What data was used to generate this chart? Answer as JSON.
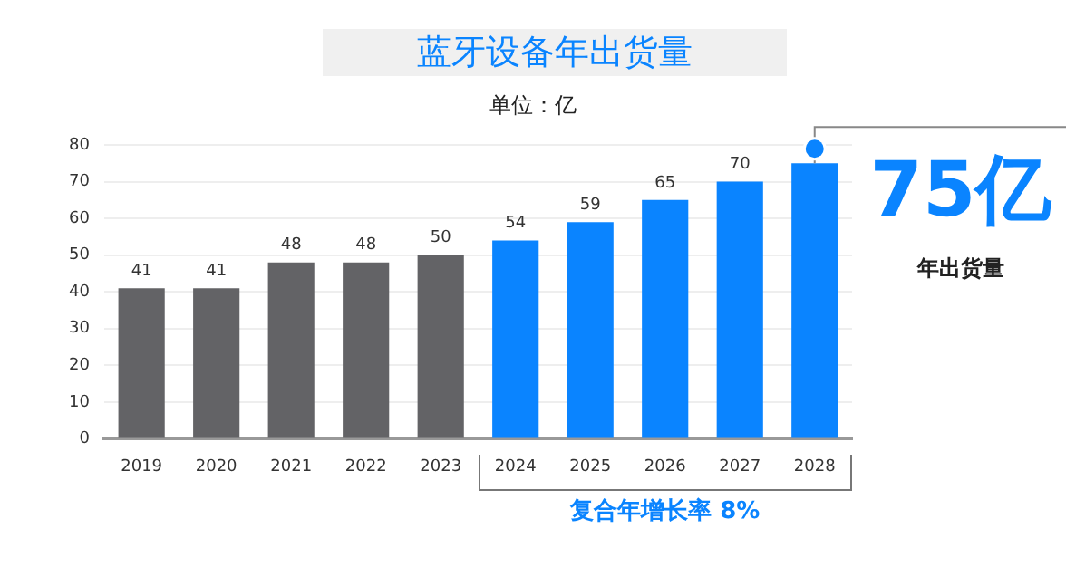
{
  "chart_data": {
    "type": "bar",
    "title": "蓝牙设备年出货量",
    "subtitle": "单位：亿",
    "categories": [
      "2019",
      "2020",
      "2021",
      "2022",
      "2023",
      "2024",
      "2025",
      "2026",
      "2027",
      "2028"
    ],
    "values": [
      41,
      41,
      48,
      48,
      50,
      54,
      59,
      65,
      70,
      75
    ],
    "colors": [
      "#636366",
      "#636366",
      "#636366",
      "#636366",
      "#636366",
      "#0a84ff",
      "#0a84ff",
      "#0a84ff",
      "#0a84ff",
      "#0a84ff"
    ],
    "value_labels": [
      "41",
      "41",
      "48",
      "48",
      "50",
      "54",
      "59",
      "65",
      "70",
      null
    ],
    "ylim": [
      0,
      80
    ],
    "yticks": [
      0,
      10,
      20,
      30,
      40,
      50,
      60,
      70,
      80
    ],
    "grid": "y",
    "legend": false,
    "annotations": [
      {
        "text": "75亿",
        "x": "2028",
        "y": 75
      },
      "年出货量",
      "复合年增长率 8%"
    ]
  }
}
